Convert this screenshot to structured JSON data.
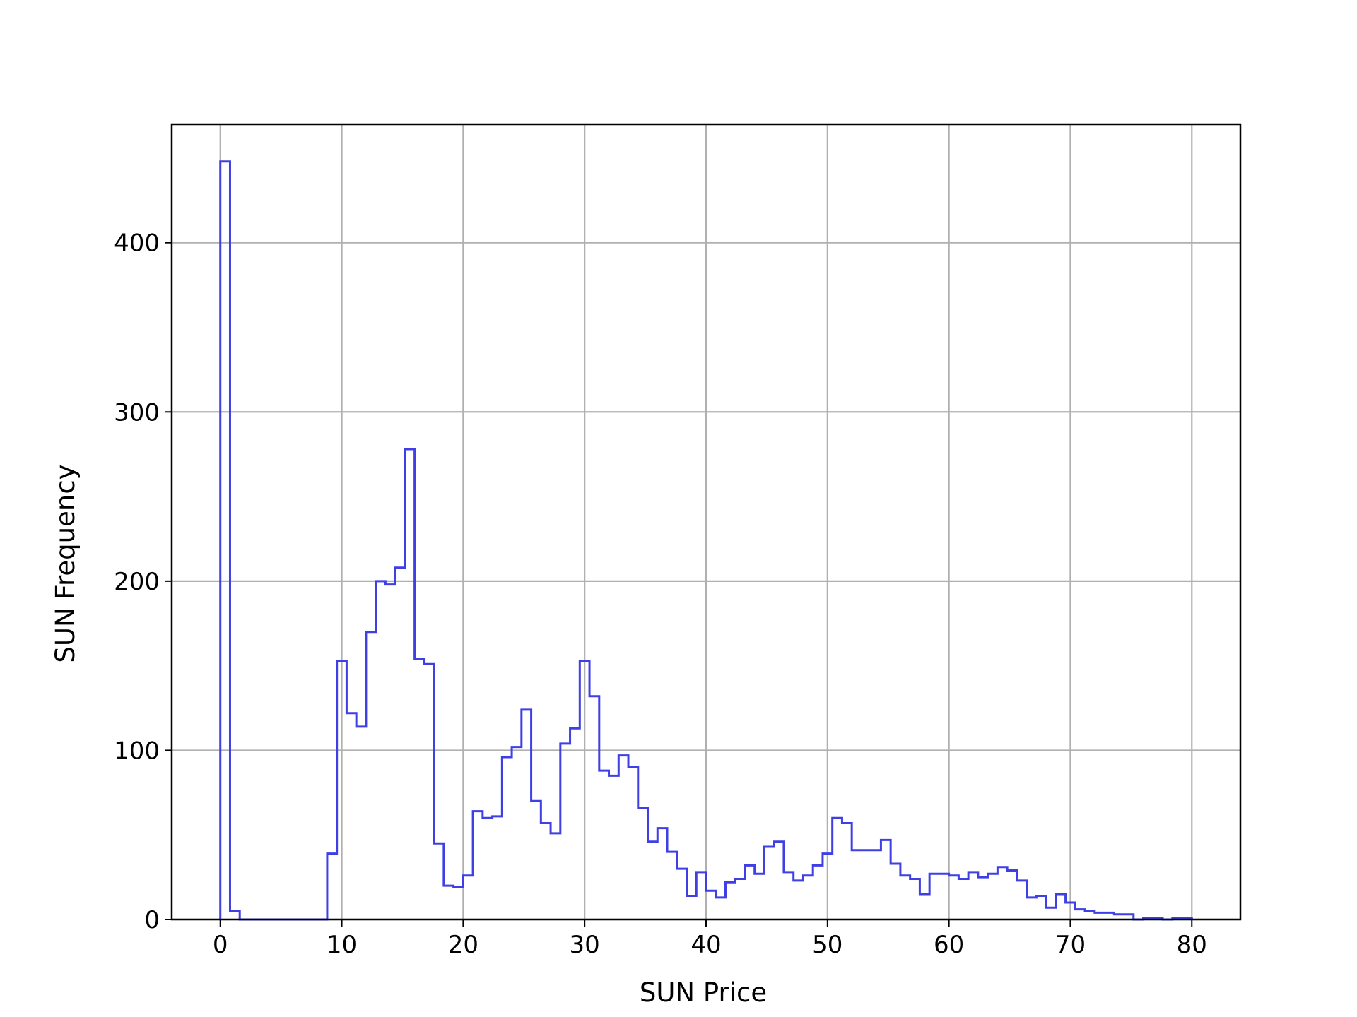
{
  "chart_data": {
    "type": "histogram",
    "xlabel": "SUN Price",
    "ylabel": "SUN Frequency",
    "xlim": [
      -4,
      84
    ],
    "ylim": [
      0,
      470
    ],
    "grid": true,
    "x_ticks": [
      0,
      10,
      20,
      30,
      40,
      50,
      60,
      70,
      80
    ],
    "y_ticks": [
      0,
      100,
      200,
      300,
      400
    ],
    "bin_start": 0,
    "bin_width": 0.8,
    "series": [
      {
        "color": "#3f3fe6",
        "values": [
          448,
          5,
          0,
          0,
          0,
          0,
          0,
          0,
          0,
          0,
          0,
          39,
          153,
          122,
          114,
          170,
          200,
          198,
          208,
          278,
          154,
          151,
          45,
          20,
          19,
          26,
          64,
          60,
          61,
          96,
          102,
          124,
          70,
          57,
          51,
          104,
          113,
          153,
          132,
          88,
          85,
          97,
          90,
          66,
          46,
          54,
          40,
          30,
          14,
          28,
          17,
          13,
          22,
          24,
          32,
          27,
          43,
          46,
          28,
          23,
          26,
          32,
          39,
          60,
          57,
          41,
          41,
          41,
          47,
          33,
          26,
          24,
          15,
          27,
          27,
          26,
          24,
          28,
          25,
          27,
          31,
          29,
          23,
          13,
          14,
          7,
          15,
          10,
          6,
          5,
          4,
          4,
          3,
          3,
          0,
          1,
          1,
          0,
          1,
          1
        ]
      }
    ]
  }
}
